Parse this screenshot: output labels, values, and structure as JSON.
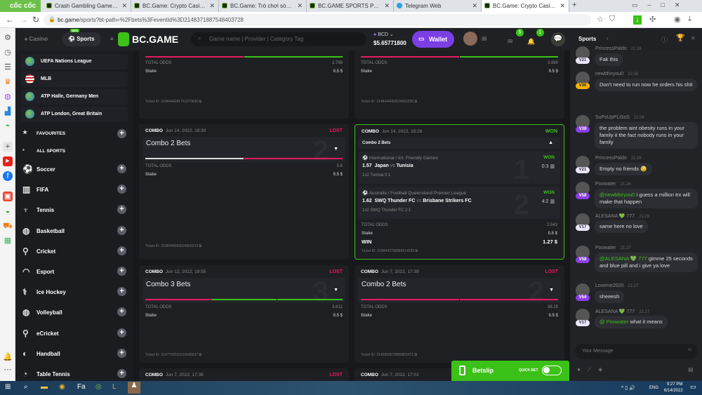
{
  "browser": {
    "brand": "cốc cốc",
    "tabs": [
      {
        "title": "Crash Gambling Game - BC.G"
      },
      {
        "title": "BC.Game: Crypto Casino Gan"
      },
      {
        "title": "BC.Game: Trò chơi sòng bạc"
      },
      {
        "title": "BC.GAME SPORTS PARLAYS"
      },
      {
        "title": "Telegram Web"
      },
      {
        "title": "BC.Game: Crypto Casino Gan",
        "active": true
      }
    ],
    "url_host": "bc.game",
    "url_path": "/sports?bt-path=%2Fbets%3FeventId%3D2148371887548403728"
  },
  "header": {
    "casino": "Casino",
    "sports": "Sports",
    "new_badge": "NEW",
    "logo": "BC.GAME",
    "search_placeholder": "Game name | Provider | Category Tag",
    "currency": "BCD",
    "balance": "$5.65771800",
    "wallet": "Wallet",
    "mail_count": "5",
    "notif_count": "1",
    "chat_tab": "Sports"
  },
  "sidebar": {
    "leagues": [
      "UEFA Nations League",
      "MLB",
      "ATP Halle, Germany Men",
      "ATP London, Great Britain"
    ],
    "favourites": "FAVOURITES",
    "all_sports": "ALL SPORTS",
    "sports": [
      {
        "label": "Soccer",
        "icon": "soccer-icon"
      },
      {
        "label": "FIFA",
        "icon": "fifa-icon"
      },
      {
        "label": "Tennis",
        "icon": "tennis-icon"
      },
      {
        "label": "Basketball",
        "icon": "basketball-icon"
      },
      {
        "label": "Cricket",
        "icon": "cricket-icon"
      },
      {
        "label": "Esport",
        "icon": "headset-icon"
      },
      {
        "label": "Ice Hockey",
        "icon": "hockey-icon"
      },
      {
        "label": "Volleyball",
        "icon": "volleyball-icon"
      },
      {
        "label": "eCricket",
        "icon": "ecricket-icon"
      },
      {
        "label": "Handball",
        "icon": "handball-icon"
      },
      {
        "label": "Table Tennis",
        "icon": "table-tennis-icon"
      }
    ]
  },
  "labels": {
    "combo": "COMBO",
    "total_odds": "TOTAL ODDS",
    "stake": "Stake",
    "win": "WIN"
  },
  "bets": [
    {
      "total_odds": "2.769",
      "stake": "0.5 $",
      "ticket": "Ticket ID: 2148444281761070635"
    },
    {
      "total_odds": "2.889",
      "stake": "0.5 $",
      "ticket": "Ticket ID: 2148444063524060256"
    },
    {
      "date": "Jun 14, 2022, 18:30",
      "result": "LOST",
      "title": "Combo 2 Bets",
      "count": "2",
      "total_odds": "5.6",
      "stake": "0.5 $",
      "ticket": "Ticket ID: 2148444063524069219"
    },
    {
      "date": "Jun 14, 2022, 18:26",
      "result": "WON",
      "title": "Combo 2 Bets",
      "total_odds": "2.543",
      "stake": "0.5 $",
      "win": "1.27 $",
      "ticket": "Ticket ID: 2148443766889514039",
      "legs": [
        {
          "league": "International / Int. Friendly Games",
          "result": "WON",
          "odds": "1.57",
          "home": "Japan",
          "away": "Tunisia",
          "score": "0:3",
          "pick": "1x2 Tunisia  0:1",
          "n": "1"
        },
        {
          "league": "Australia / Football Queensland Premier League",
          "result": "WON",
          "odds": "1.62",
          "home": "SWQ Thunder FC",
          "away": "Brisbane Strikers FC",
          "score": "4:2",
          "pick": "1x2 SWQ Thunder FC  2:1",
          "n": "2"
        }
      ]
    },
    {
      "date": "Jun 12, 2022, 19:55",
      "result": "LOST",
      "title": "Combo 3 Bets",
      "count": "3",
      "total_odds": "3.612",
      "stake": "0.5 $",
      "ticket": "Ticket ID: 2147743023210045637"
    },
    {
      "date": "Jun 7, 2022, 17:39",
      "result": "LOST",
      "title": "Combo 2 Bets",
      "count": "2",
      "total_odds": "38.25",
      "stake": "0.5 $",
      "ticket": "Ticket ID: 2145893570880803471"
    },
    {
      "date": "Jun 7, 2022, 17:36",
      "result": "LOST"
    },
    {
      "date": "Jun 7, 2022, 17:01"
    }
  ],
  "vs": "vs",
  "chat": {
    "messages": [
      {
        "user": "PrincessPaldo",
        "time": "21:26",
        "vip": "V21",
        "text": "Fak this"
      },
      {
        "user": "newbforyou0",
        "time": "21:26",
        "vip": "V30",
        "text": "Don't need to run now he orders his shit"
      },
      {
        "user": "SuPsUpPLiSsS",
        "time": "21:26",
        "vip": "V38",
        "text": "the problem aint obesity runs in your family it the fact nobody runs in your family"
      },
      {
        "user": "PrincessPaldo",
        "time": "21:26",
        "vip": "V21",
        "text": "Empty no friends 😓"
      },
      {
        "user": "Poowater",
        "time": "21:26",
        "vip": "V58",
        "mention": "@newbforyou0",
        "text": " i guess a million trx will make that happen"
      },
      {
        "user": "ALESANA 💚 777",
        "time": "21:26",
        "vip": "V17",
        "text": "same here no love"
      },
      {
        "user": "Poowater",
        "time": "21:27",
        "vip": "V58",
        "mention": "@ALESANA 💚 777",
        "text": " gimme 25 seconds and blue pill and i give ya love"
      },
      {
        "user": "Loveme2020",
        "time": "21:27",
        "vip": "V54",
        "text": "sheeesh"
      },
      {
        "user": "ALESANA 💚 777",
        "time": "21:27",
        "vip": "V17",
        "mention": "@ Poowater",
        "text": " what it means"
      }
    ],
    "placeholder": "Your Message"
  },
  "betslip": {
    "label": "Betslip",
    "quick_bet": "QUICK BET"
  },
  "taskbar": {
    "lang": "ENG",
    "time": "9:27 PM",
    "date": "6/14/2022"
  },
  "colors": {
    "accent": "#3bc117",
    "lost": "#e81a5f",
    "wallet": "#7b3fe4"
  }
}
